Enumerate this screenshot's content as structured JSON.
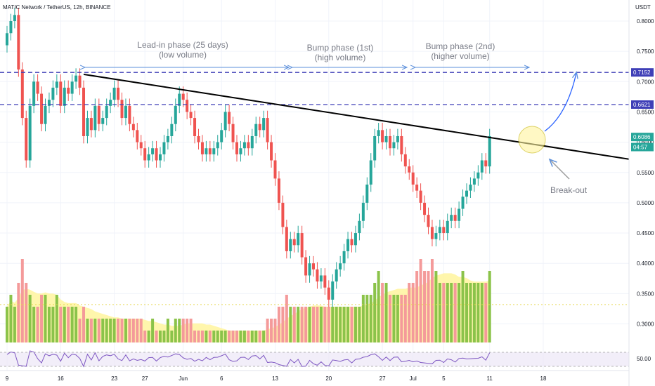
{
  "header": {
    "title": "MATIC Network / TetherUS, 12h, BINANCE",
    "currency": "USDT"
  },
  "price_axis": {
    "ticks": [
      "0.8000",
      "0.7500",
      "0.7000",
      "0.6500",
      "0.6000",
      "0.5500",
      "0.5000",
      "0.4500",
      "0.4000",
      "0.3500",
      "0.3000"
    ],
    "tick_values": [
      0.8,
      0.75,
      0.7,
      0.65,
      0.6,
      0.55,
      0.5,
      0.45,
      0.4,
      0.35,
      0.3
    ],
    "rsi_tick": "50.00",
    "labels": [
      {
        "text": "0.7152",
        "value": 0.7152,
        "color": "#3f3fb7"
      },
      {
        "text": "0.6621",
        "value": 0.6621,
        "color": "#3f3fb7"
      },
      {
        "text": "0.6086",
        "value": 0.6086,
        "color": "#26a69a"
      },
      {
        "text": "04:57",
        "value": 0.592,
        "color": "#26a69a"
      }
    ]
  },
  "time_axis": {
    "ticks": [
      {
        "label": "9",
        "bar": 0
      },
      {
        "label": "16",
        "bar": 14
      },
      {
        "label": "23",
        "bar": 28
      },
      {
        "label": "27",
        "bar": 36
      },
      {
        "label": "Jun",
        "bar": 46
      },
      {
        "label": "6",
        "bar": 56
      },
      {
        "label": "13",
        "bar": 70
      },
      {
        "label": "20",
        "bar": 84
      },
      {
        "label": "27",
        "bar": 98
      },
      {
        "label": "Jul",
        "bar": 106
      },
      {
        "label": "5",
        "bar": 114
      },
      {
        "label": "11",
        "bar": 126
      },
      {
        "label": "18",
        "bar": 140
      }
    ]
  },
  "annotations": {
    "phase1": [
      "Lead-in phase (25 days)",
      "(low volume)"
    ],
    "phase2": [
      "Bump phase (1st)",
      "(high volume)"
    ],
    "phase3": [
      "Bump phase (2nd)",
      "(higher volume)"
    ],
    "breakout": "Break-out"
  },
  "colors": {
    "up": "#26a69a",
    "down": "#ef5350",
    "trend": "#000000",
    "dash": "#3f3fb7",
    "arrow": "#5b8fdb",
    "vol_up": "#8bc34a",
    "vol_down": "#f49a9a",
    "vol_ma": "#fff59d",
    "circle": "#fff59d",
    "rsi": "#7e57c2"
  },
  "chart_data": {
    "type": "candlestick",
    "symbol": "MATIC Network / TetherUS",
    "timeframe": "12h",
    "exchange": "BINANCE",
    "ylim": [
      0.28,
      0.82
    ],
    "levels": [
      0.7152,
      0.6621
    ],
    "last_price": 0.6086,
    "closes": [
      0.78,
      0.8,
      0.81,
      0.72,
      0.64,
      0.57,
      0.66,
      0.7,
      0.68,
      0.63,
      0.66,
      0.67,
      0.69,
      0.7,
      0.66,
      0.69,
      0.68,
      0.7,
      0.71,
      0.69,
      0.61,
      0.64,
      0.62,
      0.66,
      0.63,
      0.64,
      0.66,
      0.67,
      0.69,
      0.67,
      0.64,
      0.66,
      0.63,
      0.62,
      0.6,
      0.59,
      0.57,
      0.58,
      0.59,
      0.57,
      0.58,
      0.6,
      0.61,
      0.63,
      0.66,
      0.68,
      0.67,
      0.65,
      0.64,
      0.61,
      0.6,
      0.58,
      0.59,
      0.58,
      0.59,
      0.6,
      0.62,
      0.65,
      0.63,
      0.6,
      0.58,
      0.59,
      0.6,
      0.59,
      0.61,
      0.63,
      0.62,
      0.64,
      0.6,
      0.57,
      0.54,
      0.5,
      0.46,
      0.42,
      0.44,
      0.43,
      0.45,
      0.41,
      0.38,
      0.4,
      0.39,
      0.37,
      0.38,
      0.36,
      0.34,
      0.37,
      0.39,
      0.4,
      0.42,
      0.44,
      0.43,
      0.45,
      0.47,
      0.5,
      0.53,
      0.57,
      0.61,
      0.62,
      0.6,
      0.61,
      0.59,
      0.6,
      0.61,
      0.58,
      0.56,
      0.55,
      0.53,
      0.52,
      0.5,
      0.48,
      0.46,
      0.44,
      0.45,
      0.46,
      0.45,
      0.47,
      0.48,
      0.47,
      0.49,
      0.51,
      0.52,
      0.53,
      0.54,
      0.55,
      0.57,
      0.56,
      0.61
    ],
    "volumes": [
      3,
      4,
      3,
      5,
      7,
      5,
      4,
      3,
      3,
      4,
      4,
      3,
      3,
      4,
      3,
      3,
      3,
      3,
      3,
      2,
      3,
      2,
      2,
      2,
      2,
      2,
      2,
      2,
      2,
      2,
      2,
      2,
      2,
      2,
      2,
      2,
      1,
      1,
      2,
      1,
      1,
      1,
      2,
      1,
      2,
      2,
      2,
      2,
      2,
      1,
      1,
      1,
      1,
      1,
      1,
      1,
      1,
      1,
      1,
      1,
      1,
      1,
      1,
      1,
      1,
      1,
      1,
      1,
      2,
      2,
      2,
      3,
      3,
      4,
      3,
      3,
      3,
      3,
      3,
      3,
      3,
      3,
      3,
      3,
      3,
      3,
      3,
      3,
      3,
      3,
      3,
      3,
      3,
      4,
      4,
      4,
      5,
      6,
      5,
      5,
      4,
      4,
      4,
      4,
      4,
      5,
      5,
      6,
      7,
      6,
      6,
      7,
      6,
      5,
      5,
      5,
      5,
      5,
      5,
      6,
      5,
      5,
      5,
      5,
      5,
      5,
      6
    ]
  }
}
